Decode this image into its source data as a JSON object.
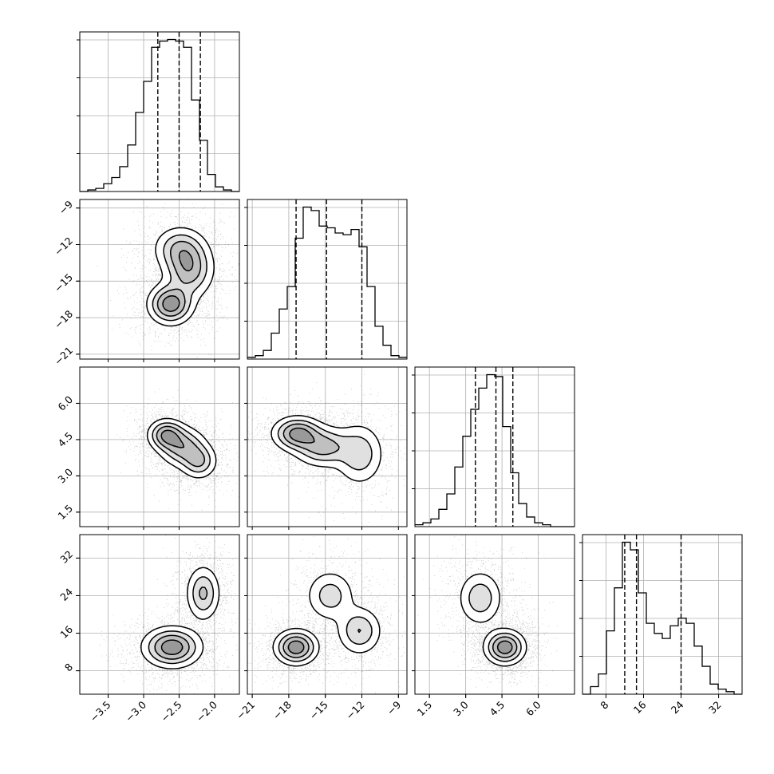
{
  "chart_data": {
    "type": "corner",
    "title": "",
    "parameters": [
      {
        "label": "",
        "range": [
          -3.9,
          -1.65
        ],
        "ticks": [
          -3.5,
          -3.0,
          -2.5,
          -2.0
        ],
        "tick_labels": [
          "−3.5",
          "−3.0",
          "−2.5",
          "−2.0"
        ],
        "quantiles": [
          -2.8,
          -2.5,
          -2.2
        ]
      },
      {
        "label": "",
        "range": [
          -21.4,
          -8.3
        ],
        "ticks": [
          -21,
          -18,
          -15,
          -12,
          -9
        ],
        "tick_labels": [
          "−21",
          "−18",
          "−15",
          "−12",
          "−9"
        ],
        "quantiles": [
          -17.4,
          -14.9,
          -12.0
        ]
      },
      {
        "label": "",
        "range": [
          0.9,
          7.5
        ],
        "ticks": [
          1.5,
          3.0,
          4.5,
          6.0
        ],
        "tick_labels": [
          "1.5",
          "3.0",
          "4.5",
          "6.0"
        ],
        "quantiles": [
          3.4,
          4.25,
          4.95
        ]
      },
      {
        "label": "",
        "range": [
          3.0,
          37.0
        ],
        "ticks": [
          8,
          16,
          24,
          32
        ],
        "tick_labels": [
          "8",
          "16",
          "24",
          "32"
        ],
        "quantiles": [
          12.0,
          14.5,
          24.0
        ]
      }
    ],
    "histograms": [
      {
        "param": 0,
        "edges_start": -3.9,
        "bin_width": 0.1125,
        "counts": [
          0,
          1,
          2,
          5,
          9,
          16,
          30,
          51,
          71,
          93,
          97,
          98,
          97,
          93,
          59,
          33,
          11,
          3,
          1,
          0
        ]
      },
      {
        "param": 1,
        "edges_start": -21.4,
        "bin_width": 0.655,
        "counts": [
          1,
          2,
          5,
          15,
          29,
          42,
          70,
          88,
          86,
          77,
          76,
          73,
          72,
          75,
          65,
          42,
          19,
          8,
          2,
          1
        ]
      },
      {
        "param": 2,
        "edges_start": 0.9,
        "bin_width": 0.33,
        "counts": [
          1,
          2,
          4,
          9,
          17,
          31,
          47,
          61,
          72,
          79,
          78,
          52,
          28,
          12,
          5,
          2,
          1,
          0,
          0,
          0
        ]
      },
      {
        "param": 3,
        "edges_start": 3.0,
        "bin_width": 1.7,
        "counts": [
          0,
          3,
          8,
          25,
          42,
          60,
          57,
          40,
          28,
          24,
          22,
          27,
          30,
          28,
          19,
          11,
          4,
          2,
          1,
          0
        ]
      }
    ],
    "density_2d": [
      {
        "x": 0,
        "y": 1,
        "modes": [
          {
            "mx": -2.62,
            "my": -16.9,
            "sx": 0.17,
            "sy": 0.9,
            "w": 1.0
          },
          {
            "mx": -2.36,
            "my": -14.0,
            "sx": 0.19,
            "sy": 1.3,
            "w": 0.75
          },
          {
            "mx": -2.5,
            "my": -12.3,
            "sx": 0.2,
            "sy": 1.0,
            "w": 0.5
          }
        ]
      },
      {
        "x": 0,
        "y": 2,
        "modes": [
          {
            "mx": -2.68,
            "my": 4.7,
            "sx": 0.14,
            "sy": 0.35,
            "w": 1.0
          },
          {
            "mx": -2.45,
            "my": 4.2,
            "sx": 0.18,
            "sy": 0.45,
            "w": 0.85
          },
          {
            "mx": -2.22,
            "my": 3.6,
            "sx": 0.14,
            "sy": 0.4,
            "w": 0.7
          }
        ]
      },
      {
        "x": 0,
        "y": 3,
        "modes": [
          {
            "mx": -2.6,
            "my": 13.0,
            "sx": 0.22,
            "sy": 2.3,
            "w": 1.0
          },
          {
            "mx": -2.16,
            "my": 24.5,
            "sx": 0.13,
            "sy": 3.2,
            "w": 0.6
          }
        ]
      },
      {
        "x": 1,
        "y": 2,
        "modes": [
          {
            "mx": -17.3,
            "my": 4.75,
            "sx": 1.1,
            "sy": 0.38,
            "w": 1.0
          },
          {
            "mx": -15.2,
            "my": 4.2,
            "sx": 1.3,
            "sy": 0.45,
            "w": 0.75
          },
          {
            "mx": -12.2,
            "my": 3.9,
            "sx": 1.1,
            "sy": 0.7,
            "w": 0.55
          }
        ]
      },
      {
        "x": 1,
        "y": 3,
        "modes": [
          {
            "mx": -17.4,
            "my": 13.0,
            "sx": 0.95,
            "sy": 2.0,
            "w": 1.0
          },
          {
            "mx": -14.6,
            "my": 24.0,
            "sx": 1.1,
            "sy": 3.0,
            "w": 0.45
          },
          {
            "mx": -12.2,
            "my": 16.5,
            "sx": 1.0,
            "sy": 2.8,
            "w": 0.55
          }
        ]
      },
      {
        "x": 2,
        "y": 3,
        "modes": [
          {
            "mx": 4.62,
            "my": 13.0,
            "sx": 0.45,
            "sy": 2.0,
            "w": 1.0
          },
          {
            "mx": 3.6,
            "my": 23.5,
            "sx": 0.5,
            "sy": 3.2,
            "w": 0.5
          }
        ]
      }
    ],
    "contour_levels": [
      0.14,
      0.33,
      0.55,
      0.8
    ],
    "grid": true,
    "colors": {
      "line": "#000000",
      "density": "#000000",
      "grid": "#b0b0b0"
    }
  }
}
